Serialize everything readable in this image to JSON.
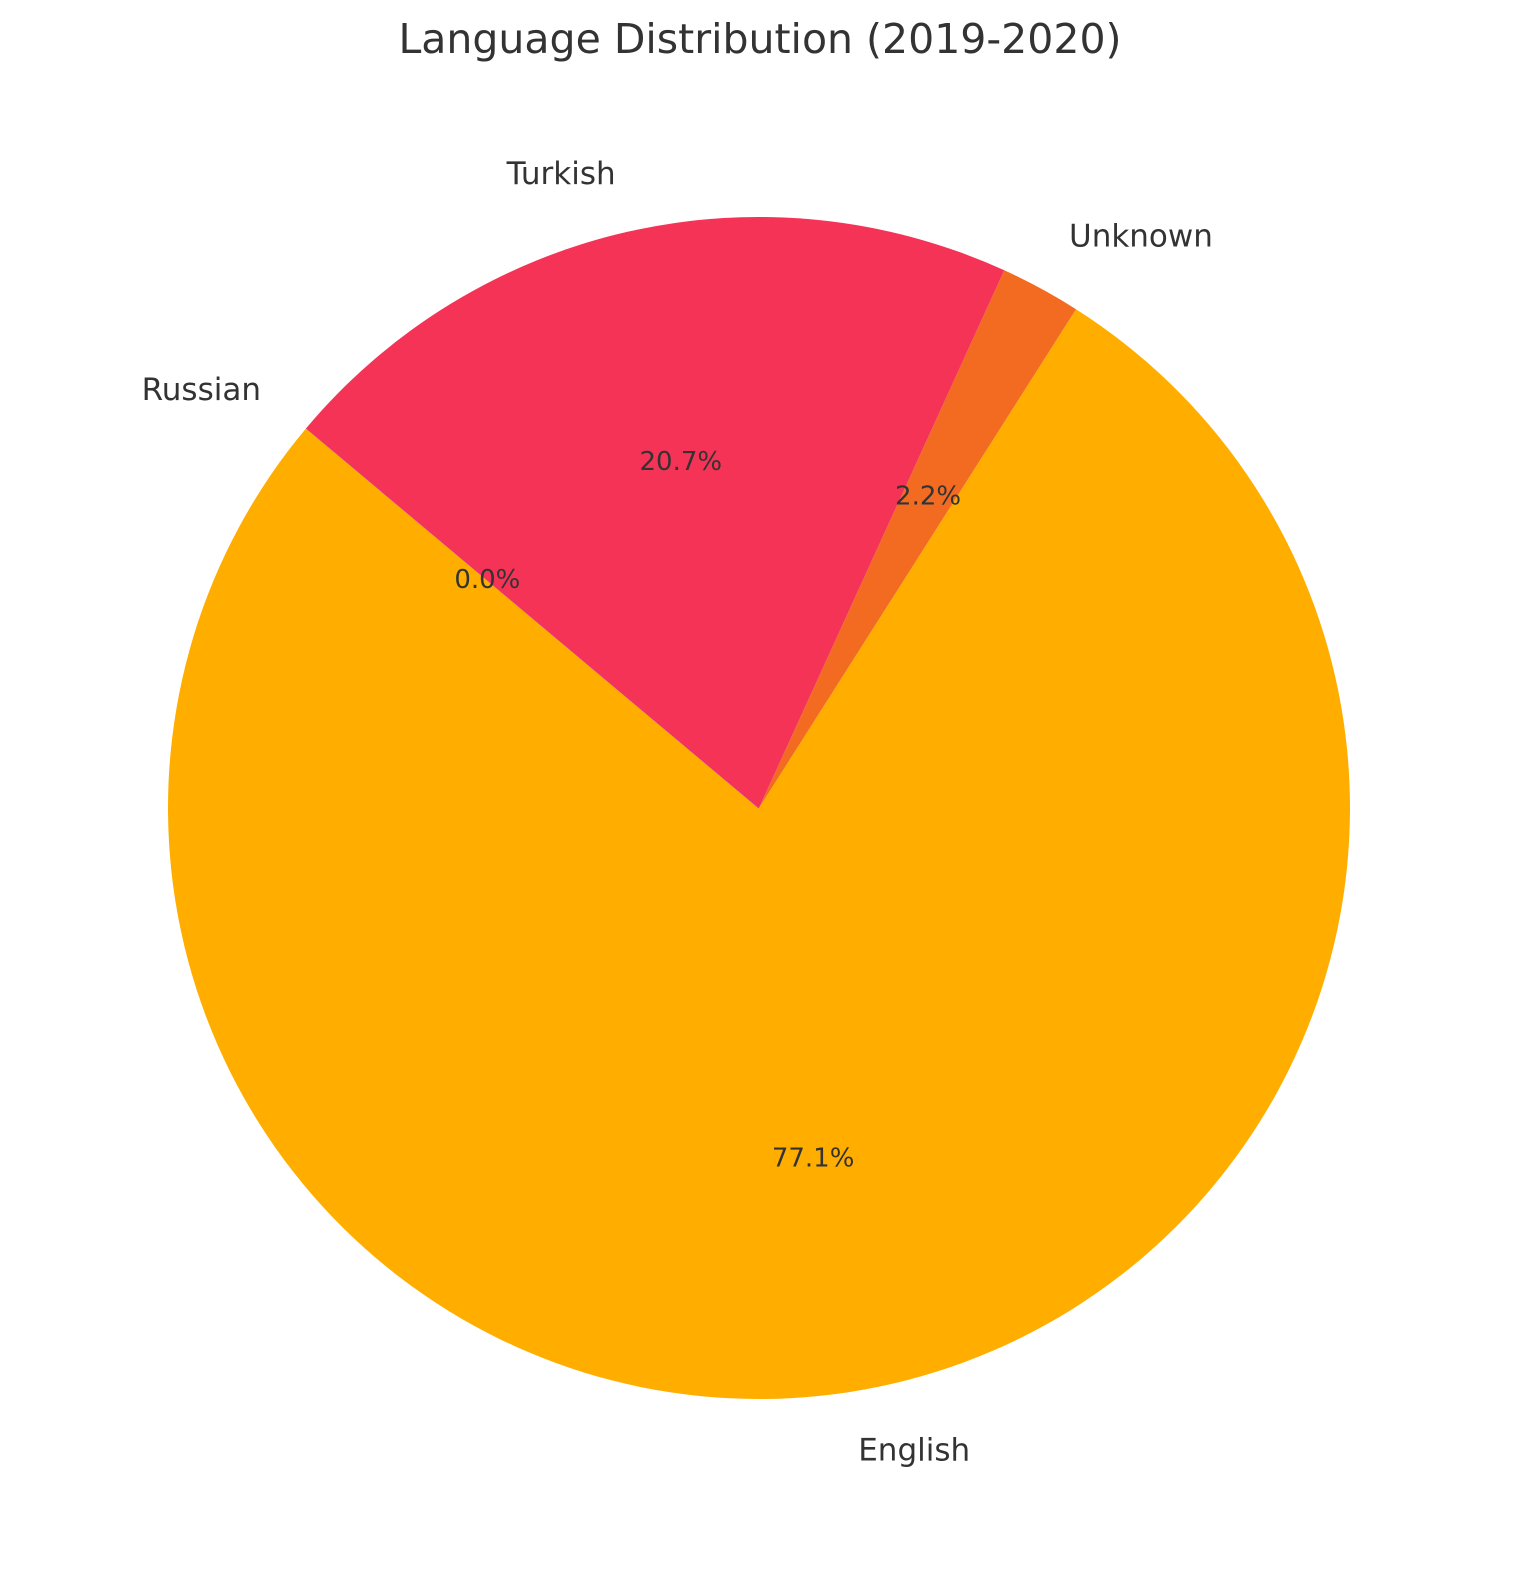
{
  "chart_data": {
    "type": "pie",
    "title": "Language Distribution (2019-2020)",
    "slices": [
      {
        "label": "English",
        "value": 77.1,
        "pct_label": "77.1%",
        "color": "#FFAE00"
      },
      {
        "label": "Unknown",
        "value": 2.2,
        "pct_label": "2.2%",
        "color": "#F26B21"
      },
      {
        "label": "Turkish",
        "value": 20.7,
        "pct_label": "20.7%",
        "color": "#F43356"
      },
      {
        "label": "Russian",
        "value": 0.0,
        "pct_label": "0.0%",
        "color": "#E8318A"
      }
    ],
    "start_angle_deg": 140,
    "direction": "counterclockwise",
    "legend": "none"
  }
}
